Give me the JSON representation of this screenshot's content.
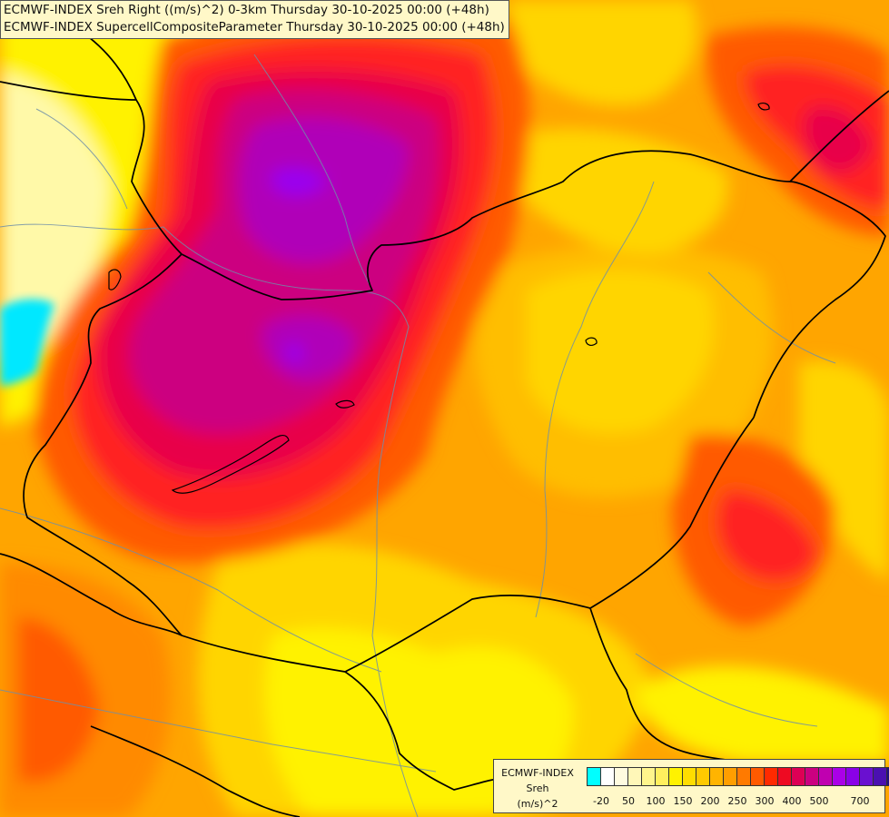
{
  "titles": {
    "line1": "ECMWF-INDEX Sreh Right ((m/s)^2) 0-3km Thursday 30-10-2025 00:00 (+48h)",
    "line2": "ECMWF-INDEX SupercellCompositeParameter Thursday 30-10-2025 00:00 (+48h)"
  },
  "legend": {
    "source": "ECMWF-INDEX",
    "variable": "Sreh",
    "unit": "(m/s)^2",
    "colors": [
      "#00ffff",
      "#ffffff",
      "#fffbe0",
      "#fff7b8",
      "#fff58c",
      "#ffef5e",
      "#fff200",
      "#ffdd00",
      "#ffca00",
      "#ffb400",
      "#ff9e00",
      "#ff7a00",
      "#ff5a00",
      "#ff2a00",
      "#ee0a22",
      "#dd0055",
      "#cc0080",
      "#c000b0",
      "#aa00e8",
      "#8a00e8",
      "#6a10d0",
      "#4a10b0",
      "#201080"
    ],
    "tick_labels": [
      "-20",
      "50",
      "100",
      "150",
      "200",
      "250",
      "300",
      "400",
      "500",
      "700"
    ]
  },
  "field_colors": {
    "light_yellow": "#fff9a8",
    "yellow": "#fff200",
    "gold": "#ffd500",
    "light_orange": "#ffbe00",
    "orange": "#ffa500",
    "dark_orange": "#ff8a00",
    "red_orange": "#ff5a00",
    "red": "#ff2020",
    "crimson": "#e8004a",
    "magenta": "#cc0080",
    "purple": "#b000b8",
    "violet": "#9a00f0",
    "water": "#00e8ff"
  }
}
